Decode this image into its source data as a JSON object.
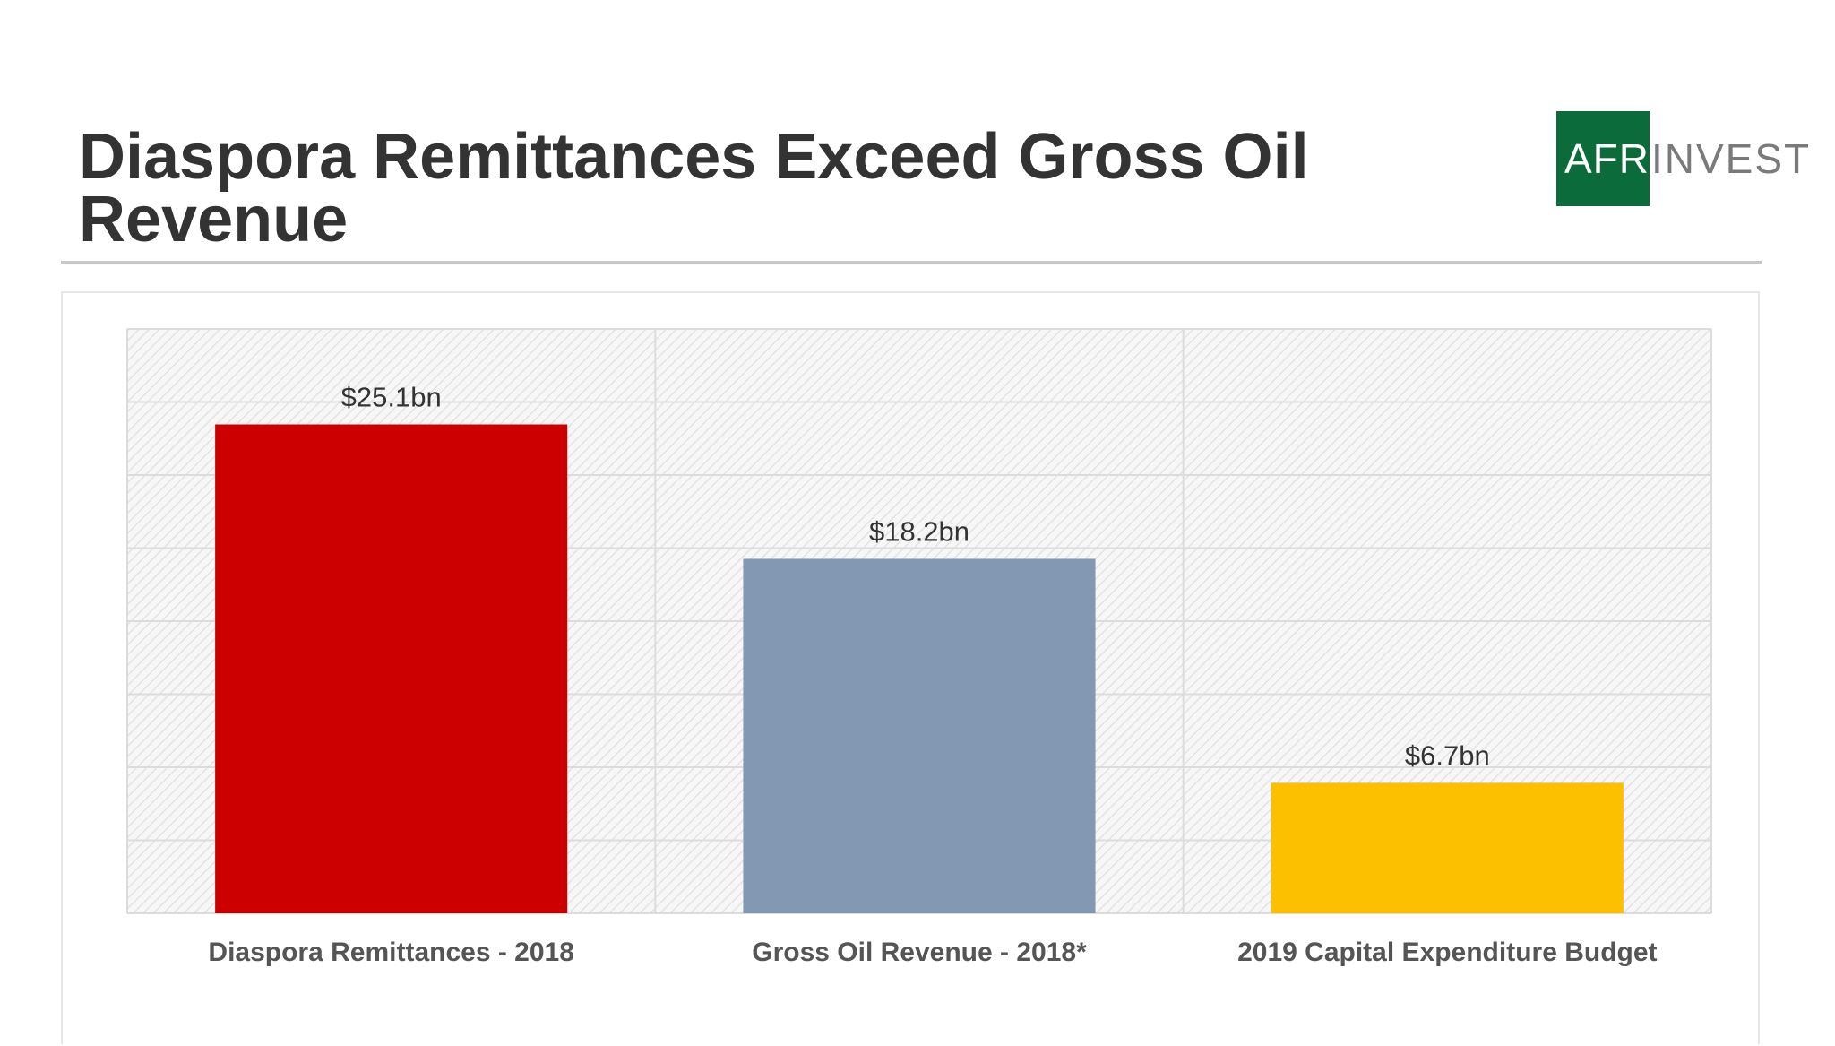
{
  "header": {
    "title": "Diaspora Remittances Exceed Gross Oil Revenue",
    "logo_left": "AFR",
    "logo_right": "INVEST"
  },
  "colors": {
    "remittances": "#cc0000",
    "oil": "#8398b3",
    "capex": "#fcc000",
    "logo_green": "#0b6b3a"
  },
  "chart_data": {
    "type": "bar",
    "title": "Diaspora Remittances Exceed Gross Oil Revenue",
    "xlabel": "",
    "ylabel": "",
    "ylim": [
      0,
      30
    ],
    "grid": true,
    "categories": [
      "Diaspora Remittances - 2018",
      "Gross Oil Revenue - 2018*",
      "2019 Capital Expenditure Budget"
    ],
    "values": [
      25.1,
      18.2,
      6.7
    ],
    "data_labels": [
      "$25.1bn",
      "$18.2bn",
      "$6.7bn"
    ],
    "bar_colors": [
      "#cc0000",
      "#8398b3",
      "#fcc000"
    ]
  }
}
